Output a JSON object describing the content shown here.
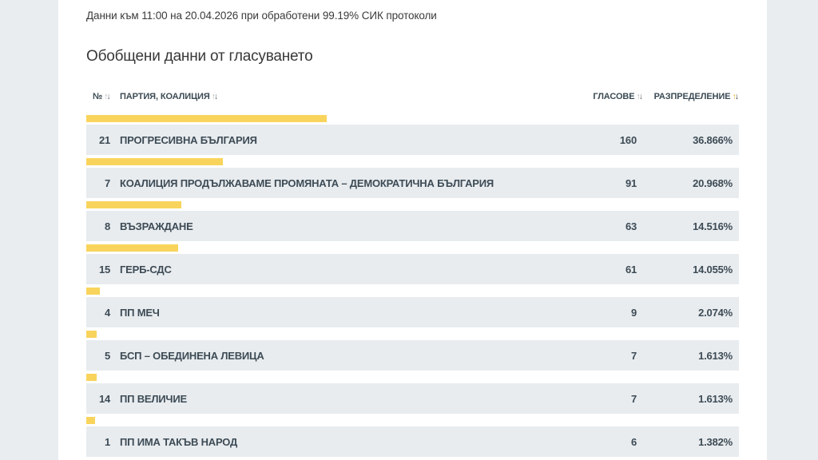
{
  "page": {
    "info_line": "Данни към 11:00 на 20.04.2026 при обработени 99.19% СИК протоколи",
    "title": "Обобщени данни от гласуването"
  },
  "colors": {
    "accent_bar_yellow": "#f9d45c",
    "sort_active_arrow": "#f5a81d",
    "row_background": "#e8ecef",
    "page_background": "#e9edf0",
    "table_text": "#3d4b55"
  },
  "table": {
    "columns": [
      {
        "key": "number",
        "label": "№",
        "sort_state": "none"
      },
      {
        "key": "party",
        "label": "ПАРТИЯ, КОАЛИЦИЯ",
        "sort_state": "none"
      },
      {
        "key": "votes",
        "label": "ГЛАСОВЕ",
        "sort_state": "none"
      },
      {
        "key": "distribution",
        "label": "РАЗПРЕДЕЛЕНИЕ",
        "sort_state": "desc"
      }
    ],
    "sort_asc_icon": "↑",
    "sort_desc_icon": "↓",
    "rows": [
      {
        "num": "21",
        "party": "ПРОГРЕСИВНА БЪЛГАРИЯ",
        "votes": "160",
        "pct": "36.866%",
        "share": 36.866
      },
      {
        "num": "7",
        "party": "КОАЛИЦИЯ ПРОДЪЛЖАВАМЕ ПРОМЯНАТА – ДЕМОКРАТИЧНА БЪЛГАРИЯ",
        "votes": "91",
        "pct": "20.968%",
        "share": 20.968
      },
      {
        "num": "8",
        "party": "ВЪЗРАЖДАНЕ",
        "votes": "63",
        "pct": "14.516%",
        "share": 14.516
      },
      {
        "num": "15",
        "party": "ГЕРБ-СДС",
        "votes": "61",
        "pct": "14.055%",
        "share": 14.055
      },
      {
        "num": "4",
        "party": "ПП МЕЧ",
        "votes": "9",
        "pct": "2.074%",
        "share": 2.074
      },
      {
        "num": "5",
        "party": "БСП – ОБЕДИНЕНА ЛЕВИЦА",
        "votes": "7",
        "pct": "1.613%",
        "share": 1.613
      },
      {
        "num": "14",
        "party": "ПП ВЕЛИЧИЕ",
        "votes": "7",
        "pct": "1.613%",
        "share": 1.613
      },
      {
        "num": "1",
        "party": "ПП ИМА ТАКЪВ НАРОД",
        "votes": "6",
        "pct": "1.382%",
        "share": 1.382
      }
    ]
  }
}
